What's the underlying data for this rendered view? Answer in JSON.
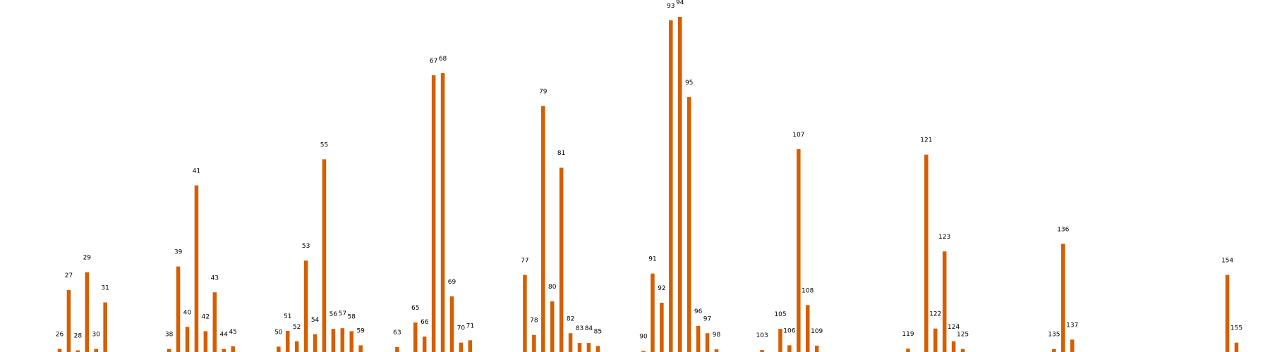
{
  "chart_data": {
    "type": "bar",
    "title": "",
    "xlabel": "",
    "ylabel": "",
    "grid": false,
    "axes_visible": false,
    "ylim": [
      0,
      1000
    ],
    "bar_color": "#d55e00",
    "categories": [
      "26",
      "27",
      "28",
      "29",
      "30",
      "31",
      "38",
      "39",
      "40",
      "41",
      "42",
      "43",
      "44",
      "45",
      "50",
      "51",
      "52",
      "53",
      "54",
      "55",
      "56",
      "57",
      "58",
      "59",
      "63",
      "65",
      "66",
      "67",
      "68",
      "69",
      "70",
      "71",
      "77",
      "78",
      "79",
      "80",
      "81",
      "82",
      "83",
      "84",
      "85",
      "90",
      "91",
      "92",
      "93",
      "94",
      "95",
      "96",
      "97",
      "98",
      "103",
      "105",
      "106",
      "107",
      "108",
      "109",
      "119",
      "121",
      "122",
      "123",
      "124",
      "125",
      "135",
      "136",
      "137",
      "154",
      "155"
    ],
    "values": [
      9,
      185,
      5,
      238,
      9,
      148,
      9,
      255,
      75,
      497,
      62,
      178,
      9,
      17,
      16,
      63,
      32,
      273,
      53,
      575,
      69,
      71,
      62,
      20,
      15,
      88,
      46,
      826,
      832,
      166,
      28,
      35,
      230,
      51,
      734,
      151,
      550,
      56,
      27,
      27,
      18,
      3,
      234,
      147,
      990,
      1000,
      761,
      78,
      56,
      8,
      6,
      69,
      20,
      605,
      140,
      19,
      10,
      589,
      70,
      300,
      32,
      9,
      9,
      323,
      37,
      230,
      28
    ]
  }
}
